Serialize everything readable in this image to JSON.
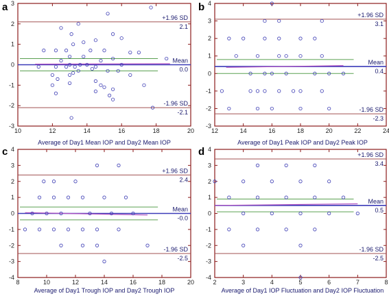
{
  "colors": {
    "frame": "#8b1a1a",
    "mean_line": "#3a3ab8",
    "ci_line": "#5aa050",
    "loa_line": "#a05050",
    "point": "#3c3cb4",
    "regression": "#b050c0"
  },
  "chart_data": [
    {
      "type": "scatter",
      "panel_label": "a",
      "xlabel": "Average of Day1 Mean IOP and Day2 Mean IOP",
      "ylabel": "",
      "xlim": [
        10,
        20
      ],
      "ylim": [
        -3,
        3
      ],
      "xticks": [
        10,
        12,
        14,
        16,
        18,
        20
      ],
      "yticks": [
        -3,
        -2,
        -1,
        0,
        1,
        2,
        3
      ],
      "mean": 0.0,
      "mean_label": "Mean",
      "mean_value_label": "0.0",
      "upper_loa": 2.1,
      "upper_label": "+1.96 SD",
      "upper_value_label": "2.1",
      "lower_loa": -2.1,
      "lower_label": "-1.96 SD",
      "lower_value_label": "-2.1",
      "ci_band": [
        -0.3,
        0.3
      ],
      "regression": [
        [
          11.0,
          0.03
        ],
        [
          18.8,
          0.05
        ]
      ],
      "points": [
        [
          17.7,
          2.8
        ],
        [
          15.2,
          2.5
        ],
        [
          13.5,
          2.0
        ],
        [
          12.5,
          1.8
        ],
        [
          13.1,
          1.5
        ],
        [
          15.5,
          1.5
        ],
        [
          16.0,
          1.3
        ],
        [
          14.5,
          1.2
        ],
        [
          13.8,
          1.1
        ],
        [
          13.2,
          1.0
        ],
        [
          11.5,
          0.7
        ],
        [
          12.2,
          0.7
        ],
        [
          12.8,
          0.7
        ],
        [
          14.2,
          0.7
        ],
        [
          15.0,
          0.7
        ],
        [
          16.5,
          0.6
        ],
        [
          17.0,
          0.6
        ],
        [
          13.0,
          0.4
        ],
        [
          13.8,
          0.4
        ],
        [
          15.5,
          0.3
        ],
        [
          18.6,
          0.3
        ],
        [
          12.5,
          0.2
        ],
        [
          14.8,
          0.2
        ],
        [
          13.0,
          0.0
        ],
        [
          13.6,
          0.0
        ],
        [
          14.0,
          0.0
        ],
        [
          16.0,
          0.0
        ],
        [
          11.2,
          -0.1
        ],
        [
          12.2,
          -0.1
        ],
        [
          12.8,
          -0.1
        ],
        [
          13.3,
          -0.1
        ],
        [
          14.5,
          -0.1
        ],
        [
          14.3,
          -0.2
        ],
        [
          13.5,
          -0.3
        ],
        [
          15.2,
          -0.3
        ],
        [
          15.8,
          -0.3
        ],
        [
          13.2,
          -0.4
        ],
        [
          12.0,
          -0.5
        ],
        [
          13.0,
          -0.5
        ],
        [
          16.5,
          -0.5
        ],
        [
          12.3,
          -0.7
        ],
        [
          14.5,
          -0.8
        ],
        [
          13.0,
          -0.9
        ],
        [
          12.0,
          -1.0
        ],
        [
          14.8,
          -1.0
        ],
        [
          15.0,
          -1.1
        ],
        [
          17.3,
          -1.0
        ],
        [
          15.5,
          -1.2
        ],
        [
          14.5,
          -1.3
        ],
        [
          12.2,
          -1.4
        ],
        [
          15.3,
          -1.5
        ],
        [
          15.5,
          -1.7
        ],
        [
          17.8,
          -2.1
        ],
        [
          13.1,
          -2.6
        ]
      ]
    },
    {
      "type": "scatter",
      "panel_label": "b",
      "xlabel": "Average of Day1 Peak IOP and Day2 Peak IOP",
      "ylabel": "",
      "xlim": [
        12,
        24
      ],
      "ylim": [
        -3,
        4
      ],
      "xticks": [
        12,
        14,
        16,
        18,
        20,
        22,
        24
      ],
      "yticks": [
        -3,
        -2,
        -1,
        0,
        1,
        2,
        3,
        4
      ],
      "mean": 0.4,
      "mean_label": "Mean",
      "mean_value_label": "0.4",
      "upper_loa": 3.1,
      "upper_label": "+1.96 SD",
      "upper_value_label": "3.1",
      "lower_loa": -2.3,
      "lower_label": "-1.96 SD",
      "lower_value_label": "-2.3",
      "ci_band": [
        0.0,
        0.8
      ],
      "regression": [
        [
          12.8,
          0.35
        ],
        [
          21.0,
          0.45
        ]
      ],
      "points": [
        [
          16.0,
          4.0
        ],
        [
          15.5,
          3.0
        ],
        [
          16.5,
          3.0
        ],
        [
          19.5,
          3.0
        ],
        [
          13.0,
          2.0
        ],
        [
          14.0,
          2.0
        ],
        [
          15.5,
          2.0
        ],
        [
          16.5,
          2.0
        ],
        [
          18.0,
          2.0
        ],
        [
          19.0,
          2.0
        ],
        [
          13.5,
          1.0
        ],
        [
          15.0,
          1.0
        ],
        [
          16.5,
          1.0
        ],
        [
          17.0,
          1.0
        ],
        [
          18.0,
          1.0
        ],
        [
          19.5,
          1.0
        ],
        [
          14.5,
          0.0
        ],
        [
          15.5,
          0.0
        ],
        [
          16.0,
          0.0
        ],
        [
          17.0,
          0.0
        ],
        [
          19.0,
          0.0
        ],
        [
          20.0,
          0.0
        ],
        [
          21.0,
          0.0
        ],
        [
          12.5,
          -1.0
        ],
        [
          14.5,
          -1.0
        ],
        [
          15.0,
          -1.0
        ],
        [
          15.5,
          -1.0
        ],
        [
          16.5,
          -1.0
        ],
        [
          17.5,
          -1.0
        ],
        [
          18.0,
          -1.0
        ],
        [
          19.5,
          -1.0
        ],
        [
          13.0,
          -2.0
        ],
        [
          15.0,
          -2.0
        ],
        [
          16.0,
          -2.0
        ],
        [
          18.0,
          -2.0
        ],
        [
          20.0,
          -2.0
        ]
      ]
    },
    {
      "type": "scatter",
      "panel_label": "c",
      "xlabel": "Average of Day1 Trough IOP and Day2 Trough IOP",
      "ylabel": "",
      "xlim": [
        8,
        20
      ],
      "ylim": [
        -4,
        4
      ],
      "xticks": [
        8,
        10,
        12,
        14,
        16,
        18,
        20
      ],
      "yticks": [
        -4,
        -3,
        -2,
        -1,
        0,
        1,
        2,
        3,
        4
      ],
      "mean": -0.0,
      "mean_label": "Mean",
      "mean_value_label": "-0.0",
      "upper_loa": 2.4,
      "upper_label": "+1.96 SD",
      "upper_value_label": "2.4",
      "lower_loa": -2.5,
      "lower_label": "-1.96 SD",
      "lower_value_label": "-2.5",
      "ci_band": [
        -0.4,
        0.4
      ],
      "regression": [
        [
          8.5,
          0.05
        ],
        [
          17.0,
          -0.1
        ]
      ],
      "points": [
        [
          13.5,
          3.0
        ],
        [
          15.0,
          3.0
        ],
        [
          9.8,
          2.0
        ],
        [
          10.5,
          2.0
        ],
        [
          12.0,
          2.0
        ],
        [
          9.5,
          1.0
        ],
        [
          10.5,
          1.0
        ],
        [
          11.5,
          1.0
        ],
        [
          12.5,
          1.0
        ],
        [
          14.0,
          1.0
        ],
        [
          15.5,
          1.0
        ],
        [
          9.0,
          0.0
        ],
        [
          10.0,
          0.0
        ],
        [
          11.0,
          0.0
        ],
        [
          13.0,
          0.0
        ],
        [
          14.5,
          0.0
        ],
        [
          16.0,
          0.0
        ],
        [
          8.5,
          -1.0
        ],
        [
          9.5,
          -1.0
        ],
        [
          10.5,
          -1.0
        ],
        [
          11.5,
          -1.0
        ],
        [
          12.5,
          -1.0
        ],
        [
          13.5,
          -1.0
        ],
        [
          15.0,
          -1.0
        ],
        [
          11.0,
          -2.0
        ],
        [
          12.5,
          -2.0
        ],
        [
          13.5,
          -2.0
        ],
        [
          17.0,
          -2.0
        ],
        [
          14.0,
          -3.0
        ]
      ]
    },
    {
      "type": "scatter",
      "panel_label": "d",
      "xlabel": "Average of Day1 IOP Fluctuation and Day2 IOP Fluctuation",
      "ylabel": "",
      "xlim": [
        2,
        8
      ],
      "ylim": [
        -4,
        4
      ],
      "xticks": [
        2,
        3,
        4,
        5,
        6,
        7,
        8
      ],
      "yticks": [
        -4,
        -3,
        -2,
        -1,
        0,
        1,
        2,
        3,
        4
      ],
      "mean": 0.5,
      "mean_label": "Mean",
      "mean_value_label": "0.5",
      "upper_loa": 3.4,
      "upper_label": "+1.96 SD",
      "upper_value_label": "3.4",
      "lower_loa": -2.5,
      "lower_label": "-1.96 SD",
      "lower_value_label": "-2.5",
      "ci_band": [
        0.1,
        0.9
      ],
      "regression": [
        [
          2.0,
          0.5
        ],
        [
          7.0,
          0.6
        ]
      ],
      "points": [
        [
          3.5,
          3.0
        ],
        [
          4.5,
          3.0
        ],
        [
          5.5,
          3.0
        ],
        [
          2.0,
          2.0
        ],
        [
          3.0,
          2.0
        ],
        [
          4.0,
          2.0
        ],
        [
          5.0,
          2.0
        ],
        [
          6.0,
          2.0
        ],
        [
          2.5,
          1.0
        ],
        [
          3.5,
          1.0
        ],
        [
          4.5,
          1.0
        ],
        [
          5.5,
          1.0
        ],
        [
          6.5,
          1.0
        ],
        [
          3.0,
          0.0
        ],
        [
          4.0,
          0.0
        ],
        [
          5.0,
          0.0
        ],
        [
          6.0,
          0.0
        ],
        [
          7.0,
          0.0
        ],
        [
          2.5,
          -1.0
        ],
        [
          3.5,
          -1.0
        ],
        [
          4.5,
          -1.0
        ],
        [
          5.5,
          -1.0
        ],
        [
          3.0,
          -2.0
        ],
        [
          5.0,
          -2.0
        ],
        [
          5.0,
          -4.0
        ]
      ]
    }
  ]
}
